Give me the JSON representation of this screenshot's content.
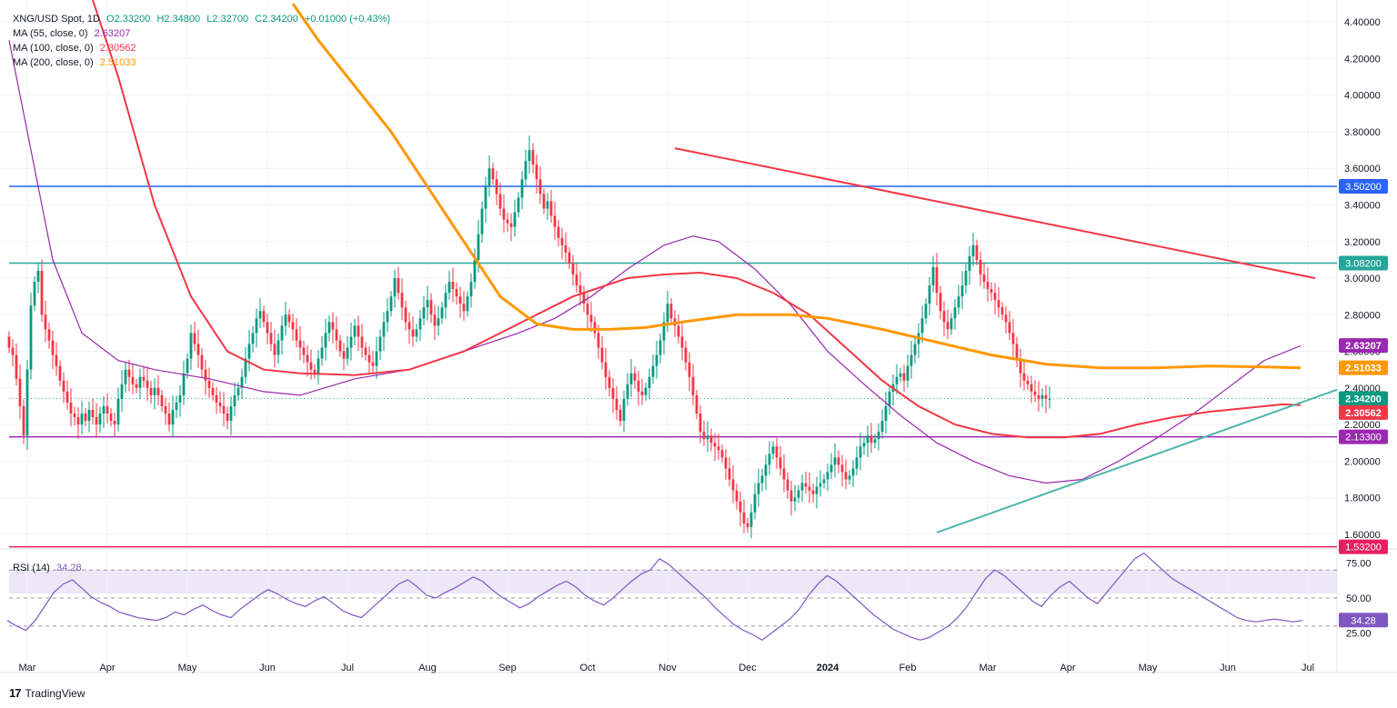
{
  "legend": {
    "symbol": "XNG/USD Spot, 1D",
    "open": "O2.33200",
    "high": "H2.34800",
    "low": "L2.32700",
    "close": "C2.34200",
    "change": "+0.01000 (+0.43%)",
    "ma55_label": "MA (55, close, 0)",
    "ma55_value": "2.63207",
    "ma100_label": "MA (100, close, 0)",
    "ma100_value": "2.30562",
    "ma200_label": "MA (200, close, 0)",
    "ma200_value": "2.51033"
  },
  "rsi": {
    "label": "RSI (14)",
    "value": "34.28"
  },
  "footer": {
    "brand": "TradingView"
  },
  "colors": {
    "up": "#089981",
    "down": "#f23645",
    "ma55": "#9c27b0",
    "ma100": "#f23645",
    "ma200": "#ff9800",
    "blue": "#2962ff",
    "teal": "#26a69a",
    "purple": "#9c27b0",
    "pink": "#e91e63",
    "support": "#4db6ac",
    "rsi": "#7e57c2"
  },
  "chart_data": {
    "type": "candlestick",
    "title": "XNG/USD Spot, 1D",
    "ylim": [
      1.52,
      4.52
    ],
    "y_ticks": [
      "4.40000",
      "4.20000",
      "4.00000",
      "3.80000",
      "3.60000",
      "3.40000",
      "3.20000",
      "3.00000",
      "2.80000",
      "2.60000",
      "2.40000",
      "2.20000",
      "2.00000",
      "1.80000",
      "1.60000"
    ],
    "x_ticks": [
      "Mar",
      "Apr",
      "May",
      "Jun",
      "Jul",
      "Aug",
      "Sep",
      "Oct",
      "Nov",
      "Dec",
      "2024",
      "Feb",
      "Mar",
      "Apr",
      "May",
      "Jun",
      "Jul"
    ],
    "x_tick_idx": [
      5,
      27,
      49,
      71,
      93,
      115,
      137,
      159,
      181,
      203,
      225,
      247,
      269,
      291,
      313,
      335,
      357
    ],
    "n_bars": 365,
    "closes": [
      2.62,
      2.58,
      2.45,
      2.3,
      2.14,
      2.5,
      2.85,
      2.98,
      3.04,
      2.8,
      2.72,
      2.66,
      2.58,
      2.52,
      2.44,
      2.38,
      2.32,
      2.26,
      2.24,
      2.2,
      2.26,
      2.22,
      2.28,
      2.24,
      2.2,
      2.26,
      2.3,
      2.26,
      2.22,
      2.2,
      2.34,
      2.42,
      2.5,
      2.46,
      2.42,
      2.4,
      2.46,
      2.44,
      2.4,
      2.36,
      2.4,
      2.36,
      2.3,
      2.26,
      2.2,
      2.28,
      2.32,
      2.36,
      2.48,
      2.56,
      2.7,
      2.64,
      2.58,
      2.5,
      2.44,
      2.4,
      2.36,
      2.32,
      2.3,
      2.26,
      2.22,
      2.3,
      2.36,
      2.4,
      2.46,
      2.56,
      2.64,
      2.7,
      2.78,
      2.82,
      2.76,
      2.7,
      2.64,
      2.58,
      2.66,
      2.74,
      2.8,
      2.76,
      2.72,
      2.66,
      2.62,
      2.58,
      2.54,
      2.5,
      2.48,
      2.56,
      2.62,
      2.7,
      2.76,
      2.72,
      2.66,
      2.6,
      2.56,
      2.62,
      2.68,
      2.74,
      2.68,
      2.62,
      2.58,
      2.54,
      2.52,
      2.6,
      2.68,
      2.76,
      2.82,
      2.9,
      3.0,
      2.92,
      2.84,
      2.76,
      2.72,
      2.68,
      2.72,
      2.78,
      2.84,
      2.88,
      2.8,
      2.74,
      2.78,
      2.84,
      2.92,
      2.98,
      2.94,
      2.9,
      2.86,
      2.82,
      2.9,
      2.98,
      3.1,
      3.24,
      3.38,
      3.5,
      3.6,
      3.54,
      3.46,
      3.38,
      3.32,
      3.3,
      3.28,
      3.36,
      3.44,
      3.54,
      3.64,
      3.7,
      3.62,
      3.54,
      3.46,
      3.38,
      3.42,
      3.34,
      3.28,
      3.22,
      3.18,
      3.14,
      3.08,
      3.02,
      2.96,
      2.92,
      2.86,
      2.8,
      2.76,
      2.7,
      2.62,
      2.54,
      2.46,
      2.4,
      2.34,
      2.28,
      2.22,
      2.34,
      2.42,
      2.48,
      2.44,
      2.38,
      2.36,
      2.4,
      2.46,
      2.52,
      2.58,
      2.66,
      2.76,
      2.86,
      2.78,
      2.74,
      2.68,
      2.62,
      2.54,
      2.46,
      2.36,
      2.26,
      2.16,
      2.12,
      2.14,
      2.1,
      2.08,
      2.06,
      2.02,
      1.96,
      1.9,
      1.84,
      1.78,
      1.72,
      1.66,
      1.64,
      1.72,
      1.82,
      1.88,
      1.92,
      1.98,
      2.04,
      2.08,
      2.02,
      1.96,
      1.9,
      1.84,
      1.78,
      1.8,
      1.84,
      1.88,
      1.86,
      1.84,
      1.82,
      1.86,
      1.88,
      1.9,
      1.94,
      1.98,
      2.02,
      1.98,
      1.94,
      1.9,
      1.92,
      1.96,
      2.02,
      2.08,
      2.1,
      2.14,
      2.1,
      2.12,
      2.16,
      2.22,
      2.3,
      2.38,
      2.42,
      2.46,
      2.48,
      2.44,
      2.52,
      2.58,
      2.64,
      2.7,
      2.78,
      2.86,
      2.96,
      3.06,
      2.92,
      2.82,
      2.76,
      2.72,
      2.78,
      2.84,
      2.9,
      2.96,
      3.04,
      3.12,
      3.18,
      3.1,
      3.02,
      2.98,
      2.94,
      2.92,
      2.88,
      2.84,
      2.8,
      2.76,
      2.7,
      2.64,
      2.56,
      2.48,
      2.44,
      2.42,
      2.38,
      2.36,
      2.34,
      2.36,
      2.34,
      2.34
    ],
    "series": [
      {
        "name": "MA (55, close, 0)",
        "last": 2.63207
      },
      {
        "name": "MA (100, close, 0)",
        "last": 2.30562
      },
      {
        "name": "MA (200, close, 0)",
        "last": 2.51033
      }
    ],
    "ma55_path": [
      [
        0,
        4.3
      ],
      [
        12,
        3.1
      ],
      [
        20,
        2.7
      ],
      [
        30,
        2.55
      ],
      [
        40,
        2.5
      ],
      [
        55,
        2.45
      ],
      [
        70,
        2.38
      ],
      [
        80,
        2.36
      ],
      [
        95,
        2.45
      ],
      [
        110,
        2.5
      ],
      [
        125,
        2.6
      ],
      [
        140,
        2.7
      ],
      [
        150,
        2.78
      ],
      [
        160,
        2.9
      ],
      [
        170,
        3.05
      ],
      [
        180,
        3.18
      ],
      [
        188,
        3.23
      ],
      [
        195,
        3.2
      ],
      [
        205,
        3.05
      ],
      [
        215,
        2.85
      ],
      [
        225,
        2.6
      ],
      [
        235,
        2.42
      ],
      [
        245,
        2.25
      ],
      [
        255,
        2.1
      ],
      [
        265,
        2.0
      ],
      [
        275,
        1.92
      ],
      [
        285,
        1.88
      ],
      [
        295,
        1.9
      ],
      [
        305,
        2.0
      ],
      [
        315,
        2.12
      ],
      [
        325,
        2.25
      ],
      [
        335,
        2.4
      ],
      [
        345,
        2.55
      ],
      [
        355,
        2.63
      ]
    ],
    "ma100_path": [
      [
        20,
        4.7
      ],
      [
        30,
        4.1
      ],
      [
        40,
        3.4
      ],
      [
        50,
        2.9
      ],
      [
        60,
        2.6
      ],
      [
        70,
        2.5
      ],
      [
        80,
        2.48
      ],
      [
        95,
        2.47
      ],
      [
        110,
        2.5
      ],
      [
        125,
        2.6
      ],
      [
        140,
        2.75
      ],
      [
        155,
        2.9
      ],
      [
        170,
        3.0
      ],
      [
        180,
        3.02
      ],
      [
        190,
        3.03
      ],
      [
        200,
        3.0
      ],
      [
        210,
        2.92
      ],
      [
        220,
        2.8
      ],
      [
        230,
        2.62
      ],
      [
        240,
        2.44
      ],
      [
        250,
        2.3
      ],
      [
        260,
        2.2
      ],
      [
        270,
        2.15
      ],
      [
        280,
        2.13
      ],
      [
        290,
        2.13
      ],
      [
        300,
        2.15
      ],
      [
        310,
        2.2
      ],
      [
        320,
        2.24
      ],
      [
        330,
        2.27
      ],
      [
        340,
        2.29
      ],
      [
        350,
        2.31
      ],
      [
        355,
        2.306
      ]
    ],
    "ma200_path": [
      [
        78,
        4.5
      ],
      [
        85,
        4.3
      ],
      [
        95,
        4.05
      ],
      [
        105,
        3.8
      ],
      [
        115,
        3.5
      ],
      [
        125,
        3.2
      ],
      [
        135,
        2.9
      ],
      [
        145,
        2.75
      ],
      [
        155,
        2.72
      ],
      [
        165,
        2.72
      ],
      [
        175,
        2.73
      ],
      [
        185,
        2.76
      ],
      [
        200,
        2.8
      ],
      [
        215,
        2.8
      ],
      [
        225,
        2.78
      ],
      [
        240,
        2.72
      ],
      [
        255,
        2.65
      ],
      [
        270,
        2.58
      ],
      [
        285,
        2.53
      ],
      [
        300,
        2.51
      ],
      [
        315,
        2.51
      ],
      [
        330,
        2.52
      ],
      [
        345,
        2.515
      ],
      [
        355,
        2.51
      ]
    ],
    "hlines": [
      {
        "price": 3.502,
        "label": "3.50200"
      },
      {
        "price": 3.082,
        "label": "3.08200"
      },
      {
        "price": 2.133,
        "label": "2.13300"
      },
      {
        "price": 1.532,
        "label": "1.53200"
      }
    ],
    "trendlines": [
      {
        "name": "resistance",
        "points": [
          [
            183,
            3.71
          ],
          [
            359,
            3.0
          ]
        ]
      },
      {
        "name": "support",
        "points": [
          [
            255,
            1.61
          ],
          [
            365,
            2.39
          ]
        ]
      }
    ],
    "price_labels": [
      {
        "price": 2.63207,
        "label": "2.63207"
      },
      {
        "price": 2.51033,
        "label": "2.51033"
      },
      {
        "price": 2.342,
        "label": "2.34200"
      },
      {
        "price": 2.30562,
        "label": "2.30562"
      }
    ],
    "rsi": {
      "ylim": [
        15,
        85
      ],
      "levels": [
        70,
        50,
        30
      ],
      "ticks": [
        "75.00",
        "50.00",
        "25.00"
      ],
      "values": [
        34,
        30,
        27,
        34,
        44,
        54,
        60,
        63,
        57,
        51,
        47,
        44,
        40,
        38,
        36,
        35,
        34,
        36,
        40,
        38,
        42,
        45,
        41,
        38,
        36,
        42,
        47,
        52,
        56,
        53,
        49,
        46,
        44,
        48,
        51,
        46,
        41,
        38,
        36,
        42,
        48,
        54,
        60,
        63,
        58,
        52,
        50,
        54,
        57,
        61,
        65,
        62,
        56,
        51,
        47,
        43,
        46,
        51,
        55,
        59,
        62,
        58,
        52,
        48,
        45,
        50,
        56,
        62,
        67,
        70,
        78,
        74,
        68,
        62,
        56,
        50,
        43,
        37,
        31,
        27,
        24,
        20,
        25,
        30,
        35,
        42,
        52,
        60,
        66,
        62,
        56,
        50,
        44,
        38,
        33,
        28,
        25,
        22,
        20,
        22,
        26,
        30,
        36,
        44,
        54,
        64,
        70,
        66,
        60,
        54,
        48,
        44,
        52,
        58,
        62,
        56,
        50,
        46,
        54,
        62,
        70,
        78,
        82,
        76,
        70,
        64,
        60,
        56,
        52,
        48,
        44,
        40,
        36,
        34,
        33,
        34,
        35,
        34,
        33,
        34
      ]
    }
  }
}
